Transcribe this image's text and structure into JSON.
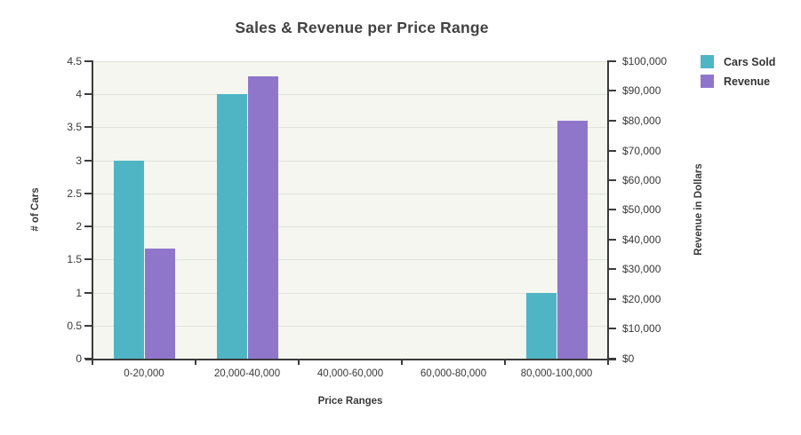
{
  "chart_data": {
    "type": "bar",
    "title": "Sales & Revenue per Price Range",
    "categories": [
      "0-20,000",
      "20,000-40,000",
      "40,000-60,000",
      "60,000-80,000",
      "80,000-100,000"
    ],
    "series": [
      {
        "name": "Cars Sold",
        "axis": "left",
        "color": "#4fb5c5",
        "values": [
          3,
          4,
          0,
          0,
          1
        ]
      },
      {
        "name": "Revenue",
        "axis": "right",
        "color": "#8f76cb",
        "values": [
          37000,
          95000,
          0,
          0,
          80000
        ]
      }
    ],
    "x_axis": {
      "label": "Price Ranges"
    },
    "left_axis": {
      "label": "# of Cars",
      "min": 0,
      "max": 4.5,
      "step": 0.5,
      "ticks": [
        "0",
        "0.5",
        "1",
        "1.5",
        "2",
        "2.5",
        "3",
        "3.5",
        "4",
        "4.5"
      ]
    },
    "right_axis": {
      "label": "Revenue in Dollars",
      "min": 0,
      "max": 100000,
      "step": 10000,
      "ticks": [
        "$0",
        "$10,000",
        "$20,000",
        "$30,000",
        "$40,000",
        "$50,000",
        "$60,000",
        "$70,000",
        "$80,000",
        "$90,000",
        "$100,000"
      ]
    },
    "legend": {
      "position": "top-right",
      "entries": [
        "Cars Sold",
        "Revenue"
      ]
    },
    "grid": true,
    "colors": {
      "plot_background": "#f4f6ef",
      "gridline": "#dfe3da",
      "axis": "#3b3b3b",
      "text": "#383838",
      "title": "#414141"
    }
  }
}
